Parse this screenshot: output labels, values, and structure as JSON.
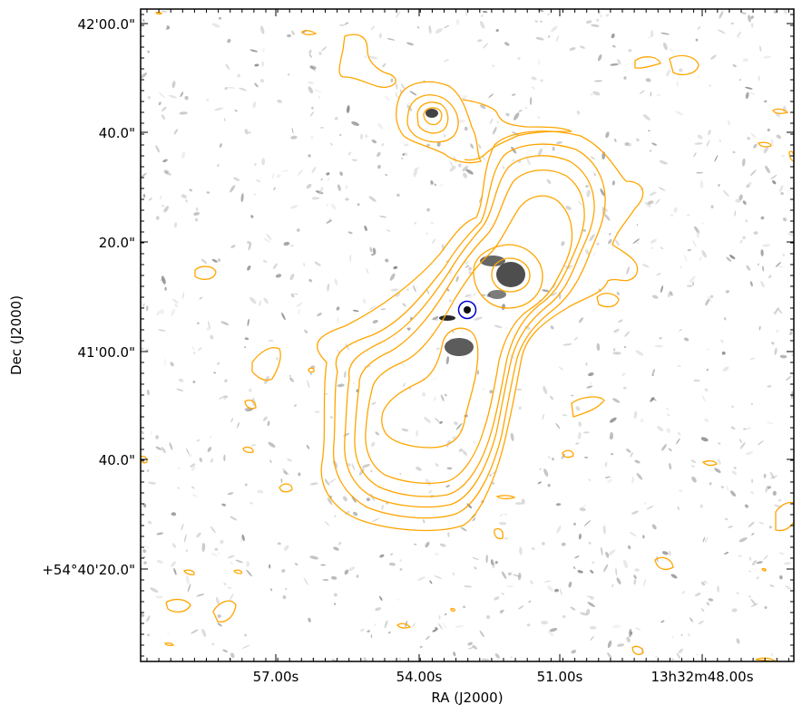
{
  "figure": {
    "x_axis_label": "RA (J2000)",
    "y_axis_label": "Dec (J2000)",
    "x_tick_labels": [
      "57.00s",
      "54.00s",
      "51.00s",
      "13h32m48.00s"
    ],
    "y_tick_labels": [
      "42'00.0\"",
      "40.0\"",
      "20.0\"",
      "41'00.0\"",
      "40.0\"",
      "+54°40'20.0\""
    ],
    "contour_color": "#ffa500",
    "marker_color": "#0000cc",
    "background_color": "#ffffff",
    "axes_color": "#000000"
  }
}
